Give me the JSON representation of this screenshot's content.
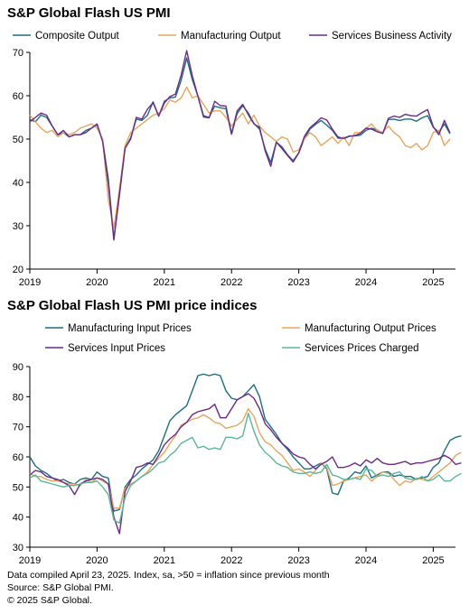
{
  "charts": [
    {
      "title": "S&P Global Flash US PMI",
      "chart_data": {
        "type": "line",
        "title": "S&P Global Flash US PMI",
        "xlabel": "",
        "ylabel": "",
        "xlim": [
          2019.0,
          2025.33
        ],
        "ylim": [
          20,
          70
        ],
        "yticks": [
          20,
          30,
          40,
          50,
          60,
          70
        ],
        "xticks": [
          "2019",
          "2020",
          "2021",
          "2022",
          "2023",
          "2024",
          "2025"
        ],
        "legend_position": "top",
        "grid": false,
        "series": [
          {
            "name": "Composite Output",
            "color": "#1d6e80",
            "values": [
              54.5,
              54.0,
              55.5,
              55.0,
              53.0,
              51.0,
              51.5,
              50.5,
              51.0,
              51.0,
              52.0,
              52.5,
              53.3,
              49.6,
              40.9,
              27.0,
              37.0,
              47.9,
              50.3,
              54.6,
              54.3,
              55.5,
              58.6,
              55.3,
              58.7,
              59.5,
              59.7,
              63.5,
              68.7,
              63.7,
              59.9,
              55.4,
              55.0,
              57.6,
              57.2,
              57.0,
              51.1,
              55.9,
              57.7,
              56.0,
              53.6,
              52.3,
              47.7,
              44.6,
              49.3,
              48.2,
              46.4,
              45.0,
              46.8,
              50.1,
              52.3,
              53.4,
              54.3,
              53.2,
              52.0,
              50.2,
              50.2,
              50.7,
              50.7,
              50.9,
              52.0,
              52.5,
              52.1,
              51.3,
              54.5,
              54.6,
              54.3,
              54.6,
              54.6,
              54.1,
              54.9,
              55.4,
              52.7,
              51.6,
              53.5,
              51.2
            ]
          },
          {
            "name": "Manufacturing Output",
            "color": "#e8a55f",
            "values": [
              55.5,
              54.0,
              52.5,
              51.5,
              52.0,
              50.5,
              51.5,
              51.0,
              51.5,
              52.5,
              53.0,
              53.5,
              52.5,
              50.0,
              36.0,
              29.5,
              38.5,
              48.5,
              51.5,
              52.5,
              53.5,
              54.5,
              55.5,
              56.0,
              57.0,
              59.0,
              58.5,
              59.5,
              62.0,
              59.5,
              60.0,
              58.0,
              56.0,
              56.5,
              56.5,
              55.0,
              53.0,
              54.5,
              56.0,
              53.5,
              55.5,
              53.0,
              51.5,
              50.5,
              49.5,
              50.5,
              50.0,
              47.0,
              47.5,
              50.0,
              51.5,
              50.5,
              48.5,
              49.5,
              50.5,
              49.0,
              50.5,
              48.5,
              51.5,
              51.5,
              52.5,
              53.5,
              52.0,
              51.5,
              53.0,
              51.5,
              50.5,
              48.5,
              48.0,
              49.0,
              47.5,
              48.5,
              51.5,
              52.0,
              48.5,
              50.0
            ]
          },
          {
            "name": "Services Business Activity",
            "color": "#6b2a87",
            "values": [
              54.0,
              55.0,
              56.0,
              55.5,
              53.0,
              51.0,
              52.0,
              50.5,
              51.0,
              51.0,
              51.5,
              52.5,
              53.5,
              49.4,
              39.8,
              26.7,
              37.5,
              47.9,
              50.0,
              55.0,
              54.6,
              56.9,
              58.4,
              55.3,
              58.3,
              59.8,
              60.4,
              64.7,
              70.4,
              64.6,
              59.9,
              55.1,
              54.9,
              58.7,
              57.7,
              57.6,
              51.2,
              56.5,
              58.0,
              55.6,
              53.5,
              52.7,
              47.3,
              43.7,
              49.3,
              47.8,
              46.2,
              44.7,
              46.8,
              50.6,
              52.6,
              53.7,
              54.9,
              54.4,
              52.3,
              50.5,
              50.1,
              50.6,
              50.8,
              51.3,
              52.5,
              52.3,
              51.7,
              51.3,
              54.8,
              55.3,
              55.0,
              55.7,
              55.4,
              55.3,
              56.1,
              56.8,
              52.9,
              51.0,
              54.3,
              51.4
            ]
          }
        ]
      }
    },
    {
      "title": "S&P Global Flash US PMI price indices",
      "chart_data": {
        "type": "line",
        "title": "S&P Global Flash US PMI price indices",
        "xlabel": "",
        "ylabel": "",
        "xlim": [
          2019.0,
          2025.33
        ],
        "ylim": [
          30,
          90
        ],
        "yticks": [
          30,
          40,
          50,
          60,
          70,
          80,
          90
        ],
        "xticks": [
          "2019",
          "2020",
          "2021",
          "2022",
          "2023",
          "2024",
          "2025"
        ],
        "legend_position": "top",
        "grid": false,
        "series": [
          {
            "name": "Manufacturing Input Prices",
            "color": "#1d6e80",
            "values": [
              60.0,
              57.0,
              55.5,
              54.5,
              53.0,
              52.0,
              52.5,
              51.5,
              51.0,
              52.5,
              53.0,
              52.5,
              55.0,
              53.5,
              53.0,
              42.0,
              42.5,
              50.0,
              52.5,
              54.0,
              56.0,
              57.5,
              59.0,
              62.0,
              67.0,
              72.0,
              74.0,
              75.5,
              77.0,
              82.0,
              87.0,
              87.5,
              87.0,
              87.5,
              87.0,
              82.0,
              79.5,
              79.0,
              80.0,
              82.0,
              84.0,
              80.0,
              72.5,
              70.0,
              67.5,
              64.5,
              62.5,
              60.0,
              58.0,
              56.0,
              56.0,
              57.0,
              58.0,
              56.0,
              48.0,
              47.5,
              52.0,
              53.0,
              55.0,
              54.5,
              57.0,
              53.0,
              54.0,
              55.0,
              55.0,
              53.5,
              54.0,
              53.5,
              53.5,
              52.5,
              53.0,
              53.5,
              56.5,
              58.0,
              62.0,
              65.5,
              66.5,
              67.0
            ]
          },
          {
            "name": "Manufacturing Output Prices",
            "color": "#e8a55f",
            "values": [
              54.5,
              53.5,
              53.5,
              52.5,
              52.0,
              52.0,
              51.5,
              51.0,
              51.0,
              50.5,
              52.5,
              51.5,
              53.0,
              52.0,
              51.0,
              43.0,
              43.0,
              49.5,
              51.0,
              52.0,
              53.5,
              55.0,
              57.5,
              59.5,
              61.5,
              64.5,
              67.0,
              70.5,
              71.5,
              72.5,
              73.0,
              74.0,
              73.0,
              71.5,
              71.0,
              69.5,
              70.0,
              70.5,
              72.0,
              76.0,
              73.5,
              68.0,
              65.0,
              64.0,
              62.0,
              60.5,
              58.0,
              55.5,
              56.0,
              55.0,
              53.5,
              55.5,
              58.0,
              56.5,
              50.5,
              51.0,
              52.0,
              52.5,
              53.0,
              53.5,
              54.0,
              52.0,
              53.5,
              55.0,
              54.5,
              52.5,
              50.5,
              52.0,
              51.5,
              53.0,
              52.5,
              52.0,
              53.5,
              55.0,
              56.5,
              58.0,
              60.5,
              61.5
            ]
          },
          {
            "name": "Services Input Prices",
            "color": "#6b2a87",
            "values": [
              54.0,
              55.5,
              55.0,
              53.5,
              53.0,
              52.5,
              51.5,
              50.5,
              47.5,
              51.0,
              52.0,
              52.5,
              53.0,
              52.5,
              51.0,
              40.0,
              34.5,
              48.5,
              52.0,
              56.5,
              57.0,
              58.0,
              57.5,
              60.5,
              64.0,
              66.0,
              67.5,
              70.0,
              71.5,
              74.0,
              75.0,
              75.5,
              76.0,
              77.5,
              73.0,
              73.0,
              76.0,
              79.0,
              80.0,
              81.0,
              79.5,
              76.0,
              71.0,
              69.0,
              66.5,
              64.5,
              63.0,
              61.0,
              60.0,
              59.5,
              57.5,
              56.0,
              57.5,
              58.5,
              60.0,
              56.5,
              56.5,
              57.0,
              58.0,
              57.0,
              59.0,
              58.0,
              59.5,
              58.0,
              57.5,
              57.5,
              58.0,
              58.5,
              57.5,
              58.0,
              58.0,
              58.5,
              59.0,
              59.5,
              60.5,
              59.5,
              57.5,
              58.0
            ]
          },
          {
            "name": "Services Prices Charged",
            "color": "#5bb79a",
            "values": [
              53.0,
              54.0,
              52.0,
              51.5,
              51.0,
              50.5,
              50.0,
              50.5,
              50.5,
              51.0,
              51.5,
              51.5,
              52.0,
              50.0,
              47.5,
              39.0,
              38.0,
              46.5,
              50.5,
              52.0,
              53.5,
              54.5,
              56.0,
              58.0,
              58.5,
              60.5,
              62.0,
              64.5,
              65.5,
              66.5,
              63.0,
              63.5,
              62.5,
              63.0,
              62.5,
              66.5,
              66.5,
              66.0,
              67.0,
              74.5,
              68.5,
              64.0,
              61.5,
              60.0,
              58.0,
              57.0,
              56.5,
              55.0,
              54.5,
              54.5,
              55.0,
              54.5,
              55.0,
              57.5,
              54.0,
              53.5,
              52.5,
              52.5,
              53.0,
              52.5,
              56.0,
              55.5,
              53.5,
              54.0,
              53.5,
              54.5,
              55.0,
              53.0,
              52.5,
              52.5,
              53.5,
              52.0,
              52.5,
              54.0,
              52.0,
              52.0,
              53.5,
              54.5
            ]
          }
        ]
      }
    }
  ],
  "footer": {
    "line1": "Data compiled April 23, 2025. Index, sa, >50 = inflation since previous month",
    "line2": "Source: S&P Global PMI.",
    "line3": "© 2025 S&P Global."
  }
}
